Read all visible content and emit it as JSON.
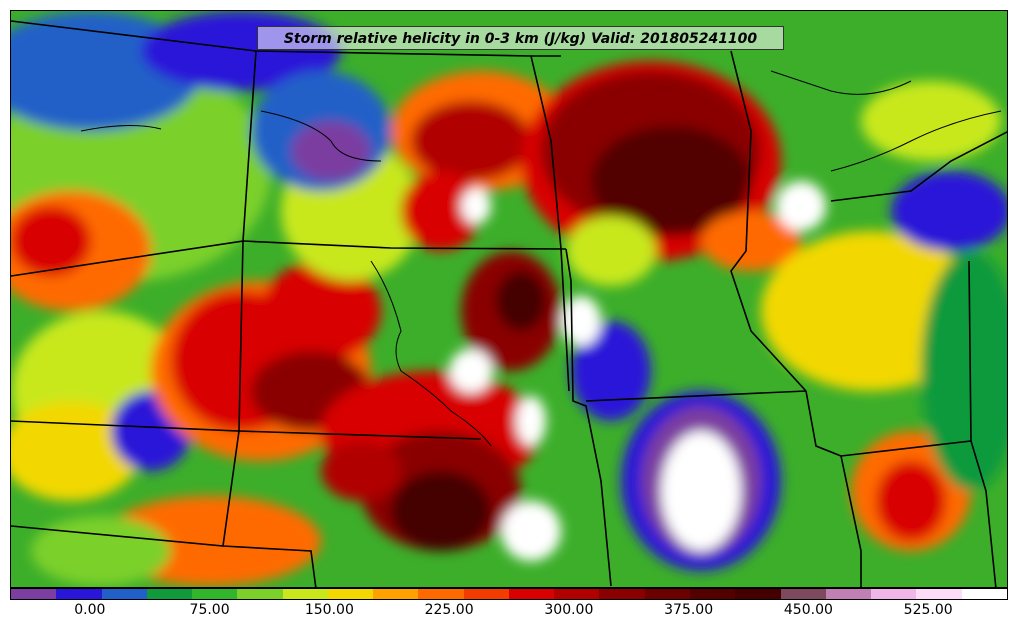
{
  "title": "Storm relative helicity in 0-3 km (J/kg) Valid: 201805241100",
  "colorbar": {
    "colors": [
      "#7c3ea0",
      "#2a16d8",
      "#2060c8",
      "#119a3c",
      "#31b52c",
      "#7bd02a",
      "#c8e81c",
      "#f2d800",
      "#ffa200",
      "#ff6a00",
      "#f23c00",
      "#d80000",
      "#b00000",
      "#8a0000",
      "#6a0000",
      "#520000",
      "#440000",
      "#7c4a5c",
      "#c080b4",
      "#f0b6e8",
      "#fcdcf8",
      "#ffffff"
    ],
    "ticks": [
      {
        "label": "0.00",
        "value": 0
      },
      {
        "label": "75.00",
        "value": 75
      },
      {
        "label": "150.00",
        "value": 150
      },
      {
        "label": "225.00",
        "value": 225
      },
      {
        "label": "300.00",
        "value": 300
      },
      {
        "label": "375.00",
        "value": 375
      },
      {
        "label": "450.00",
        "value": 450
      },
      {
        "label": "525.00",
        "value": 525
      }
    ],
    "min": -50,
    "max": 575
  }
}
